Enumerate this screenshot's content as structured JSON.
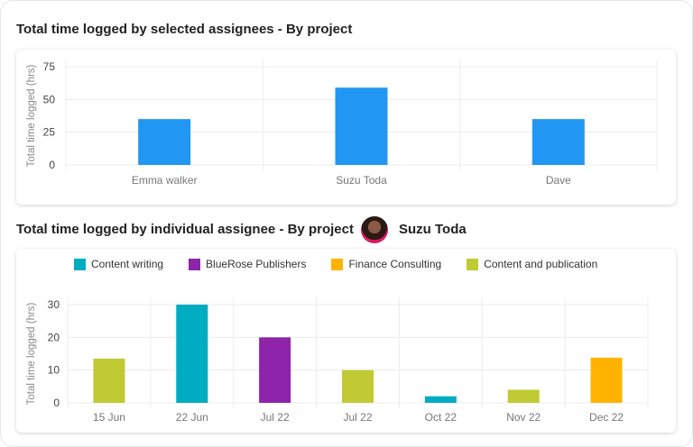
{
  "section1": {
    "title": "Total time logged by selected assignees - By project"
  },
  "section2": {
    "title": "Total time logged by individual assignee - By project",
    "assignee": "Suzu Toda"
  },
  "chart_data": [
    {
      "type": "bar",
      "title": "Total time logged by selected assignees - By project",
      "ylabel": "Total time  logged (hrs)",
      "categories": [
        "Emma walker",
        "Suzu Toda",
        "Dave"
      ],
      "values": [
        35,
        59,
        35
      ],
      "yticks": [
        0,
        25,
        50,
        75
      ],
      "ylim": [
        0,
        75
      ],
      "grid": true,
      "color": "#2196f3"
    },
    {
      "type": "bar",
      "title": "Total time logged by individual assignee - By project",
      "ylabel": "Total time  logged (hrs)",
      "categories": [
        "15 Jun",
        "22 Jun",
        "Jul 22",
        "Jul 22",
        "Oct 22",
        "Nov 22",
        "Dec 22"
      ],
      "values": [
        13.5,
        30,
        20,
        10,
        2,
        4,
        13.8
      ],
      "series_of_bar": [
        "Content and publication",
        "Content writing",
        "BlueRose Publishers",
        "Content and publication",
        "Content writing",
        "Content and publication",
        "Finance Consulting"
      ],
      "legend": [
        {
          "name": "Content writing",
          "color": "#00acc1"
        },
        {
          "name": "BlueRose Publishers",
          "color": "#8e24aa"
        },
        {
          "name": "Finance Consulting",
          "color": "#ffb300"
        },
        {
          "name": "Content and publication",
          "color": "#c0ca33"
        }
      ],
      "legend_position": "top-left",
      "yticks": [
        0,
        10,
        20,
        30
      ],
      "ylim": [
        0,
        32
      ],
      "grid": true
    }
  ]
}
